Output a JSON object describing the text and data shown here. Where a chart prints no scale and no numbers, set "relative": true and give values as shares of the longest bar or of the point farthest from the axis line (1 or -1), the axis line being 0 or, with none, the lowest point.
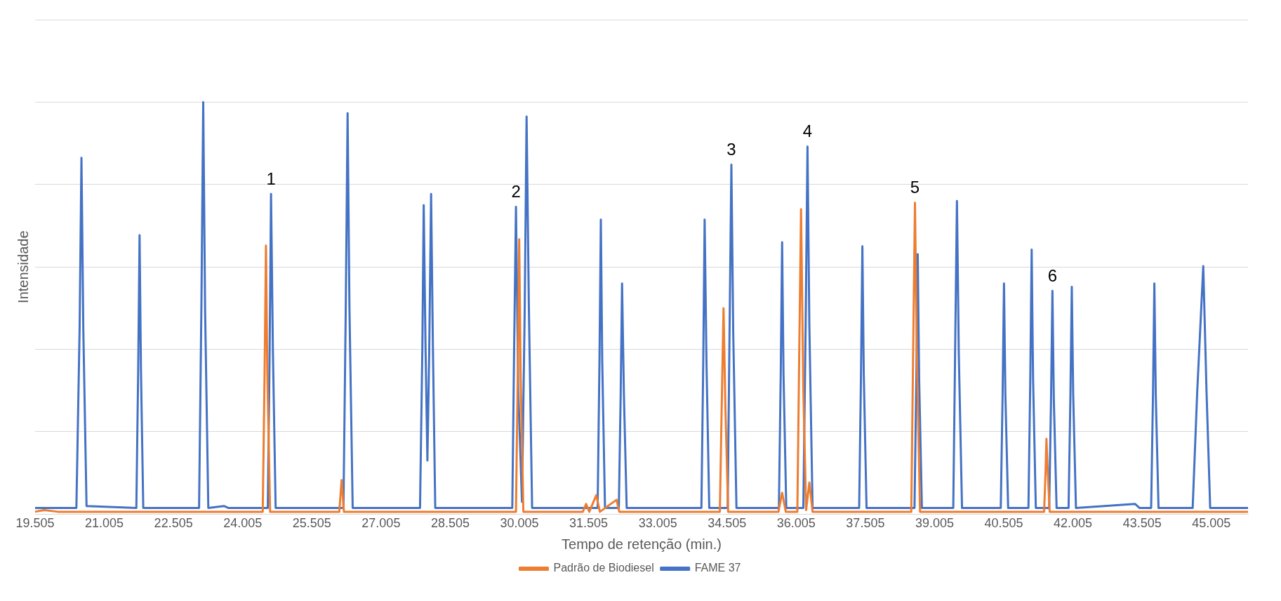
{
  "chart_data": {
    "type": "line",
    "xlabel": "Tempo de retenção (min.)",
    "ylabel": "Intensidade",
    "relative": true,
    "grid": "y",
    "legend": "bottom",
    "marker": "none",
    "line_style": "solid",
    "xlim": [
      19.505,
      45.8
    ],
    "xticks": [
      19.505,
      21.005,
      22.505,
      24.005,
      25.505,
      27.005,
      28.505,
      30.005,
      31.505,
      33.005,
      34.505,
      36.005,
      37.505,
      39.005,
      40.505,
      42.005,
      43.505,
      45.005
    ],
    "series": [
      {
        "name": "FAME 37",
        "color": "#4472c4",
        "x": [
          19.505,
          20.4,
          20.47,
          20.51,
          20.55,
          20.62,
          21.7,
          21.74,
          21.77,
          21.8,
          21.85,
          23.06,
          23.11,
          23.15,
          23.19,
          23.26,
          23.6,
          23.7,
          24.55,
          24.59,
          24.62,
          24.66,
          24.72,
          26.19,
          26.24,
          26.28,
          26.32,
          26.39,
          27.85,
          27.9,
          27.93,
          27.97,
          28.01,
          28.05,
          28.09,
          28.13,
          28.18,
          29.85,
          29.89,
          29.93,
          29.98,
          30.06,
          30.12,
          30.16,
          30.21,
          30.28,
          31.7,
          31.74,
          31.77,
          31.8,
          31.86,
          32.16,
          32.2,
          32.23,
          32.27,
          32.33,
          33.95,
          33.99,
          34.02,
          34.06,
          34.12,
          34.52,
          34.56,
          34.6,
          34.64,
          34.71,
          35.63,
          35.67,
          35.7,
          35.73,
          35.79,
          36.16,
          36.21,
          36.25,
          36.29,
          36.36,
          37.37,
          37.41,
          37.44,
          37.47,
          37.53,
          38.57,
          38.61,
          38.64,
          38.67,
          38.73,
          39.41,
          39.45,
          39.49,
          39.53,
          39.6,
          40.44,
          40.48,
          40.51,
          40.54,
          40.6,
          41.04,
          41.08,
          41.11,
          41.14,
          41.2,
          41.49,
          41.53,
          41.56,
          41.59,
          41.65,
          41.91,
          41.95,
          41.98,
          42.01,
          42.07,
          43.35,
          43.45,
          43.7,
          43.74,
          43.77,
          43.8,
          43.86,
          44.6,
          44.7,
          44.83,
          44.9,
          44.98,
          45.8
        ],
        "values": [
          0.015,
          0.015,
          0.45,
          0.865,
          0.45,
          0.02,
          0.015,
          0.35,
          0.677,
          0.35,
          0.015,
          0.015,
          0.5,
          1.0,
          0.5,
          0.015,
          0.02,
          0.015,
          0.015,
          0.4,
          0.777,
          0.4,
          0.015,
          0.015,
          0.5,
          0.973,
          0.5,
          0.015,
          0.015,
          0.4,
          0.75,
          0.4,
          0.13,
          0.4,
          0.777,
          0.4,
          0.015,
          0.015,
          0.4,
          0.746,
          0.3,
          0.03,
          0.5,
          0.965,
          0.5,
          0.015,
          0.015,
          0.37,
          0.715,
          0.37,
          0.015,
          0.015,
          0.29,
          0.56,
          0.29,
          0.015,
          0.015,
          0.37,
          0.715,
          0.37,
          0.015,
          0.015,
          0.44,
          0.848,
          0.44,
          0.015,
          0.015,
          0.34,
          0.66,
          0.34,
          0.015,
          0.015,
          0.46,
          0.892,
          0.46,
          0.015,
          0.015,
          0.34,
          0.65,
          0.34,
          0.015,
          0.015,
          0.33,
          0.631,
          0.33,
          0.015,
          0.015,
          0.39,
          0.76,
          0.39,
          0.015,
          0.015,
          0.29,
          0.56,
          0.29,
          0.015,
          0.015,
          0.33,
          0.642,
          0.33,
          0.015,
          0.015,
          0.28,
          0.542,
          0.28,
          0.015,
          0.015,
          0.29,
          0.552,
          0.29,
          0.015,
          0.025,
          0.015,
          0.015,
          0.29,
          0.56,
          0.29,
          0.015,
          0.015,
          0.3,
          0.602,
          0.3,
          0.015,
          0.015
        ]
      },
      {
        "name": "Padrão de Biodiesel",
        "color": "#ed7d31",
        "x": [
          19.505,
          19.7,
          20.0,
          24.44,
          24.48,
          24.51,
          24.54,
          24.6,
          26.1,
          26.15,
          26.2,
          29.93,
          29.97,
          30.0,
          30.03,
          30.09,
          31.38,
          31.45,
          31.52,
          31.67,
          31.75,
          32.11,
          32.17,
          34.35,
          34.39,
          34.43,
          34.47,
          34.53,
          35.62,
          35.7,
          35.78,
          36.03,
          36.07,
          36.11,
          36.16,
          36.22,
          36.29,
          36.36,
          38.5,
          38.54,
          38.58,
          38.62,
          38.69,
          41.38,
          41.41,
          41.43,
          41.46,
          41.5,
          45.8
        ],
        "values": [
          0.006,
          0.01,
          0.006,
          0.006,
          0.34,
          0.652,
          0.34,
          0.006,
          0.006,
          0.083,
          0.006,
          0.006,
          0.35,
          0.667,
          0.35,
          0.006,
          0.006,
          0.025,
          0.006,
          0.046,
          0.006,
          0.035,
          0.006,
          0.006,
          0.26,
          0.5,
          0.26,
          0.006,
          0.006,
          0.052,
          0.006,
          0.006,
          0.38,
          0.74,
          0.3,
          0.01,
          0.077,
          0.006,
          0.006,
          0.39,
          0.756,
          0.39,
          0.006,
          0.006,
          0.1,
          0.183,
          0.1,
          0.006,
          0.006
        ]
      }
    ],
    "annotations": [
      {
        "text": "1",
        "x": 24.62,
        "y": 0.777
      },
      {
        "text": "2",
        "x": 29.93,
        "y": 0.746
      },
      {
        "text": "3",
        "x": 34.6,
        "y": 0.848
      },
      {
        "text": "4",
        "x": 36.25,
        "y": 0.892
      },
      {
        "text": "5",
        "x": 38.58,
        "y": 0.756
      },
      {
        "text": "6",
        "x": 41.56,
        "y": 0.542
      }
    ]
  }
}
